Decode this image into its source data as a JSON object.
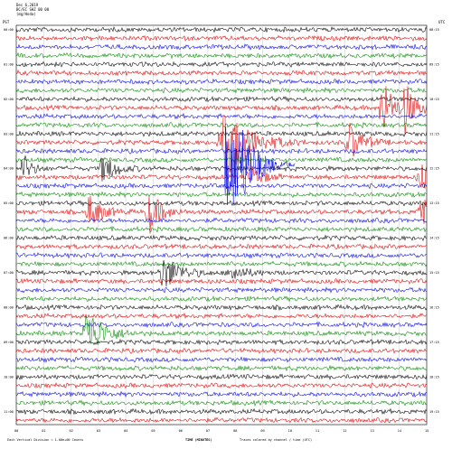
{
  "header": {
    "date": "Dec 6,2019",
    "station": "BC/EC SHZ 00 00",
    "units": "(mg/Hoda)",
    "corner_left": "PST",
    "corner_right": "UTC"
  },
  "helicorder": {
    "row_count": 46,
    "trace_colors": [
      "#000000",
      "#dd0000",
      "#0000dd",
      "#008800"
    ],
    "hour_labels_left": [
      "00:00",
      "",
      "",
      "",
      "01:00",
      "",
      "",
      "",
      "02:00",
      "",
      "",
      "",
      "03:00",
      "",
      "",
      "",
      "04:00",
      "",
      "",
      "",
      "05:00",
      "",
      "",
      "",
      "06:00",
      "",
      "",
      "",
      "07:00",
      "",
      "",
      "",
      "08:00",
      "",
      "",
      "",
      "09:00",
      "",
      "",
      "",
      "10:00",
      "",
      "",
      "",
      "11:00",
      ""
    ],
    "hour_labels_right": [
      "08:15",
      "",
      "",
      "",
      "09:15",
      "",
      "",
      "",
      "10:15",
      "",
      "",
      "",
      "11:15",
      "",
      "",
      "",
      "12:15",
      "",
      "",
      "",
      "13:15",
      "",
      "",
      "",
      "14:15",
      "",
      "",
      "",
      "15:15",
      "",
      "",
      "",
      "16:15",
      "",
      "",
      "",
      "17:15",
      "",
      "",
      "",
      "18:15",
      "",
      "",
      "",
      "19:15",
      ""
    ],
    "minute_ticks": [
      "00",
      "01",
      "02",
      "03",
      "04",
      "05",
      "06",
      "07",
      "08",
      "09",
      "10",
      "11",
      "12",
      "13",
      "14",
      "15"
    ],
    "events": [
      {
        "row": 9,
        "minute": 14.2,
        "amplitude": 30,
        "width": 0.5
      },
      {
        "row": 9,
        "minute": 13.4,
        "amplitude": 34,
        "width": 0.5
      },
      {
        "row": 13,
        "minute": 7.6,
        "amplitude": 40,
        "width": 1.2
      },
      {
        "row": 13,
        "minute": 12.2,
        "amplitude": 22,
        "width": 0.6
      },
      {
        "row": 16,
        "minute": 0.3,
        "amplitude": 14,
        "width": 0.4
      },
      {
        "row": 16,
        "minute": 3.2,
        "amplitude": 16,
        "width": 0.6
      },
      {
        "row": 17,
        "minute": 8.6,
        "amplitude": 12,
        "width": 0.6
      },
      {
        "row": 17,
        "minute": 14.8,
        "amplitude": 16,
        "width": 0.6
      },
      {
        "row": 21,
        "minute": 2.7,
        "amplitude": 18,
        "width": 0.6
      },
      {
        "row": 21,
        "minute": 4.9,
        "amplitude": 22,
        "width": 0.6
      },
      {
        "row": 21,
        "minute": 14.8,
        "amplitude": 20,
        "width": 0.6
      },
      {
        "row": 28,
        "minute": 5.4,
        "amplitude": 20,
        "width": 0.8
      },
      {
        "row": 28,
        "minute": 7.9,
        "amplitude": 10,
        "width": 0.6
      },
      {
        "row": 35,
        "minute": 2.6,
        "amplitude": 28,
        "width": 0.8
      }
    ],
    "background_amplitude": 2.2
  },
  "footer": {
    "left_note": "Each Vertical Division = 1.00e+00 Counts",
    "center": "TIME (MINUTES)",
    "right_note": "Traces colored by channel / time (UTC)"
  }
}
